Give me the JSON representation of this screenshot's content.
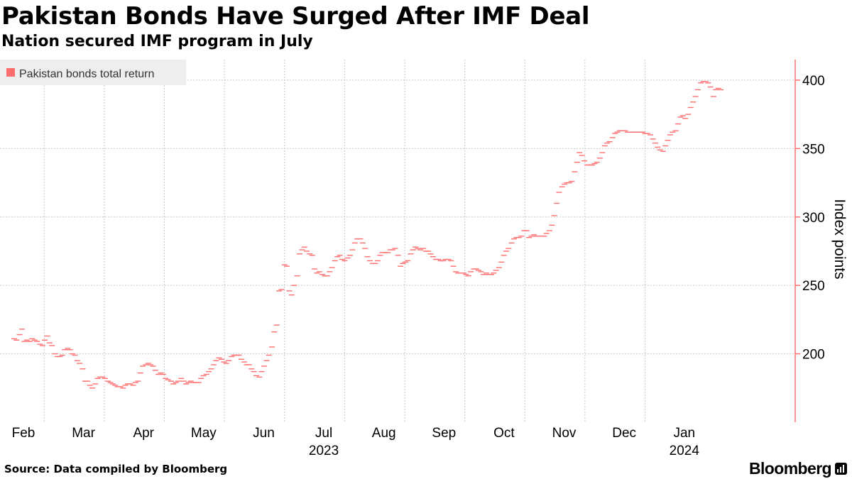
{
  "header": {
    "title": "Pakistan Bonds Have Surged After IMF Deal",
    "subtitle": "Nation secured IMF program in July"
  },
  "footer": {
    "source": "Source: Data compiled by Bloomberg",
    "brand": "Bloomberg"
  },
  "colors": {
    "series": "#ff6e6e",
    "axis": "#ff6e6e",
    "grid": "#c8c8c8",
    "legend_bg": "#eeeeee"
  },
  "chart_data": {
    "type": "line",
    "title": "Pakistan Bonds Have Surged After IMF Deal",
    "subtitle": "Nation secured IMF program in July",
    "xlabel": "",
    "ylabel": "Index points",
    "ylim": [
      150,
      415
    ],
    "yticks": [
      200,
      250,
      300,
      350,
      400
    ],
    "grid": true,
    "legend_position": "top-left",
    "x_domain": [
      0,
      1300
    ],
    "month_labels": [
      {
        "label": "Feb",
        "x": 0
      },
      {
        "label": "Mar",
        "x": 100
      },
      {
        "label": "Apr",
        "x": 200
      },
      {
        "label": "May",
        "x": 300
      },
      {
        "label": "Jun",
        "x": 400
      },
      {
        "label": "Jul",
        "x": 500
      },
      {
        "label": "Aug",
        "x": 600
      },
      {
        "label": "Sep",
        "x": 700
      },
      {
        "label": "Oct",
        "x": 800
      },
      {
        "label": "Nov",
        "x": 900
      },
      {
        "label": "Dec",
        "x": 1000
      },
      {
        "label": "Jan",
        "x": 1100
      }
    ],
    "year_labels": [
      {
        "label": "2023",
        "x": 500
      },
      {
        "label": "2024",
        "x": 1100
      }
    ],
    "series": [
      {
        "name": "Pakistan bonds total return",
        "points": [
          [
            0,
            211
          ],
          [
            4,
            210
          ],
          [
            9,
            214
          ],
          [
            13,
            218
          ],
          [
            17,
            209
          ],
          [
            21,
            210
          ],
          [
            26,
            209
          ],
          [
            30,
            211
          ],
          [
            34,
            210
          ],
          [
            38,
            209
          ],
          [
            43,
            207
          ],
          [
            47,
            206
          ],
          [
            51,
            210
          ],
          [
            55,
            213
          ],
          [
            59,
            208
          ],
          [
            63,
            206
          ],
          [
            68,
            200
          ],
          [
            72,
            198
          ],
          [
            76,
            198
          ],
          [
            80,
            199
          ],
          [
            84,
            203
          ],
          [
            89,
            204
          ],
          [
            93,
            203
          ],
          [
            97,
            200
          ],
          [
            101,
            199
          ],
          [
            105,
            195
          ],
          [
            109,
            193
          ],
          [
            114,
            189
          ],
          [
            118,
            180
          ],
          [
            122,
            180
          ],
          [
            126,
            177
          ],
          [
            130,
            175
          ],
          [
            135,
            178
          ],
          [
            139,
            182
          ],
          [
            143,
            183
          ],
          [
            147,
            183
          ],
          [
            151,
            182
          ],
          [
            156,
            180
          ],
          [
            160,
            179
          ],
          [
            164,
            178
          ],
          [
            168,
            177
          ],
          [
            172,
            176
          ],
          [
            177,
            176
          ],
          [
            181,
            175
          ],
          [
            185,
            177
          ],
          [
            189,
            178
          ],
          [
            193,
            178
          ],
          [
            198,
            177
          ],
          [
            202,
            179
          ],
          [
            206,
            180
          ],
          [
            210,
            186
          ],
          [
            214,
            191
          ],
          [
            219,
            192
          ],
          [
            223,
            193
          ],
          [
            227,
            192
          ],
          [
            231,
            191
          ],
          [
            235,
            188
          ],
          [
            240,
            185
          ],
          [
            244,
            186
          ],
          [
            248,
            185
          ],
          [
            252,
            182
          ],
          [
            256,
            181
          ],
          [
            261,
            180
          ],
          [
            265,
            178
          ],
          [
            269,
            179
          ],
          [
            273,
            180
          ],
          [
            278,
            182
          ],
          [
            282,
            180
          ],
          [
            286,
            178
          ],
          [
            290,
            179
          ],
          [
            294,
            180
          ],
          [
            299,
            179
          ],
          [
            303,
            179
          ],
          [
            307,
            179
          ],
          [
            311,
            182
          ],
          [
            315,
            184
          ],
          [
            320,
            185
          ],
          [
            324,
            187
          ],
          [
            328,
            189
          ],
          [
            332,
            192
          ],
          [
            336,
            195
          ],
          [
            341,
            197
          ],
          [
            345,
            196
          ],
          [
            349,
            194
          ],
          [
            353,
            193
          ],
          [
            357,
            195
          ],
          [
            362,
            198
          ],
          [
            366,
            199
          ],
          [
            370,
            199
          ],
          [
            374,
            199
          ],
          [
            378,
            196
          ],
          [
            383,
            194
          ],
          [
            387,
            192
          ],
          [
            391,
            192
          ],
          [
            395,
            189
          ],
          [
            399,
            187
          ],
          [
            403,
            184
          ],
          [
            408,
            183
          ],
          [
            412,
            187
          ],
          [
            416,
            191
          ],
          [
            420,
            195
          ],
          [
            424,
            199
          ],
          [
            429,
            205
          ],
          [
            433,
            216
          ],
          [
            437,
            221
          ],
          [
            441,
            246
          ],
          [
            445,
            247
          ],
          [
            450,
            265
          ],
          [
            454,
            264
          ],
          [
            458,
            246
          ],
          [
            462,
            243
          ],
          [
            466,
            250
          ],
          [
            471,
            257
          ],
          [
            475,
            273
          ],
          [
            479,
            276
          ],
          [
            483,
            278
          ],
          [
            487,
            275
          ],
          [
            492,
            273
          ],
          [
            496,
            272
          ],
          [
            500,
            262
          ],
          [
            504,
            259
          ],
          [
            508,
            260
          ],
          [
            513,
            258
          ],
          [
            517,
            257
          ],
          [
            521,
            257
          ],
          [
            525,
            260
          ],
          [
            529,
            263
          ],
          [
            534,
            268
          ],
          [
            538,
            271
          ],
          [
            542,
            272
          ],
          [
            546,
            269
          ],
          [
            550,
            268
          ],
          [
            555,
            270
          ],
          [
            559,
            272
          ],
          [
            563,
            276
          ],
          [
            567,
            281
          ],
          [
            571,
            284
          ],
          [
            576,
            284
          ],
          [
            580,
            281
          ],
          [
            584,
            277
          ],
          [
            588,
            271
          ],
          [
            592,
            268
          ],
          [
            597,
            266
          ],
          [
            601,
            266
          ],
          [
            605,
            268
          ],
          [
            609,
            272
          ],
          [
            613,
            274
          ],
          [
            618,
            274
          ],
          [
            622,
            274
          ],
          [
            626,
            276
          ],
          [
            630,
            276
          ],
          [
            634,
            277
          ],
          [
            639,
            272
          ],
          [
            643,
            264
          ],
          [
            647,
            266
          ],
          [
            651,
            267
          ],
          [
            655,
            268
          ],
          [
            660,
            273
          ],
          [
            664,
            276
          ],
          [
            668,
            278
          ],
          [
            672,
            277
          ],
          [
            676,
            276
          ],
          [
            681,
            277
          ],
          [
            685,
            275
          ],
          [
            689,
            275
          ],
          [
            693,
            273
          ],
          [
            697,
            271
          ],
          [
            702,
            269
          ],
          [
            706,
            269
          ],
          [
            710,
            268
          ],
          [
            714,
            268
          ],
          [
            718,
            269
          ],
          [
            723,
            269
          ],
          [
            727,
            268
          ],
          [
            731,
            264
          ],
          [
            735,
            260
          ],
          [
            739,
            259
          ],
          [
            744,
            259
          ],
          [
            748,
            259
          ],
          [
            752,
            258
          ],
          [
            756,
            257
          ],
          [
            760,
            260
          ],
          [
            765,
            262
          ],
          [
            769,
            262
          ],
          [
            773,
            261
          ],
          [
            777,
            260
          ],
          [
            781,
            258
          ],
          [
            786,
            259
          ],
          [
            790,
            258
          ],
          [
            794,
            258
          ],
          [
            798,
            259
          ],
          [
            802,
            261
          ],
          [
            807,
            263
          ],
          [
            811,
            267
          ],
          [
            815,
            272
          ],
          [
            819,
            275
          ],
          [
            823,
            277
          ],
          [
            828,
            281
          ],
          [
            832,
            284
          ],
          [
            836,
            285
          ],
          [
            840,
            285
          ],
          [
            844,
            286
          ],
          [
            849,
            290
          ],
          [
            853,
            290
          ],
          [
            857,
            285
          ],
          [
            861,
            286
          ],
          [
            865,
            287
          ],
          [
            870,
            286
          ],
          [
            874,
            286
          ],
          [
            878,
            286
          ],
          [
            882,
            286
          ],
          [
            886,
            288
          ],
          [
            891,
            290
          ],
          [
            895,
            294
          ],
          [
            899,
            301
          ],
          [
            903,
            310
          ],
          [
            907,
            318
          ],
          [
            912,
            322
          ],
          [
            916,
            324
          ],
          [
            920,
            325
          ],
          [
            924,
            325
          ],
          [
            928,
            326
          ],
          [
            933,
            333
          ],
          [
            937,
            340
          ],
          [
            941,
            347
          ],
          [
            945,
            345
          ],
          [
            949,
            341
          ],
          [
            954,
            338
          ],
          [
            958,
            338
          ],
          [
            962,
            338
          ],
          [
            966,
            339
          ],
          [
            970,
            340
          ],
          [
            975,
            343
          ],
          [
            979,
            347
          ],
          [
            983,
            352
          ],
          [
            987,
            354
          ],
          [
            991,
            355
          ],
          [
            996,
            358
          ],
          [
            1000,
            361
          ],
          [
            1004,
            362
          ],
          [
            1008,
            363
          ],
          [
            1012,
            363
          ],
          [
            1017,
            363
          ],
          [
            1021,
            362
          ],
          [
            1025,
            362
          ],
          [
            1029,
            362
          ],
          [
            1033,
            362
          ],
          [
            1038,
            362
          ],
          [
            1042,
            362
          ],
          [
            1046,
            362
          ],
          [
            1050,
            361
          ],
          [
            1054,
            361
          ],
          [
            1059,
            360
          ],
          [
            1063,
            357
          ],
          [
            1067,
            354
          ],
          [
            1071,
            351
          ],
          [
            1075,
            349
          ],
          [
            1080,
            348
          ],
          [
            1084,
            352
          ],
          [
            1088,
            356
          ],
          [
            1092,
            360
          ],
          [
            1096,
            362
          ],
          [
            1101,
            363
          ],
          [
            1105,
            368
          ],
          [
            1109,
            373
          ],
          [
            1113,
            374
          ],
          [
            1117,
            372
          ],
          [
            1122,
            375
          ],
          [
            1126,
            380
          ],
          [
            1130,
            384
          ],
          [
            1134,
            388
          ],
          [
            1138,
            393
          ],
          [
            1143,
            398
          ],
          [
            1147,
            399
          ],
          [
            1151,
            399
          ],
          [
            1155,
            398
          ],
          [
            1159,
            395
          ],
          [
            1164,
            388
          ],
          [
            1168,
            393
          ],
          [
            1172,
            394
          ],
          [
            1176,
            393
          ]
        ]
      }
    ]
  }
}
